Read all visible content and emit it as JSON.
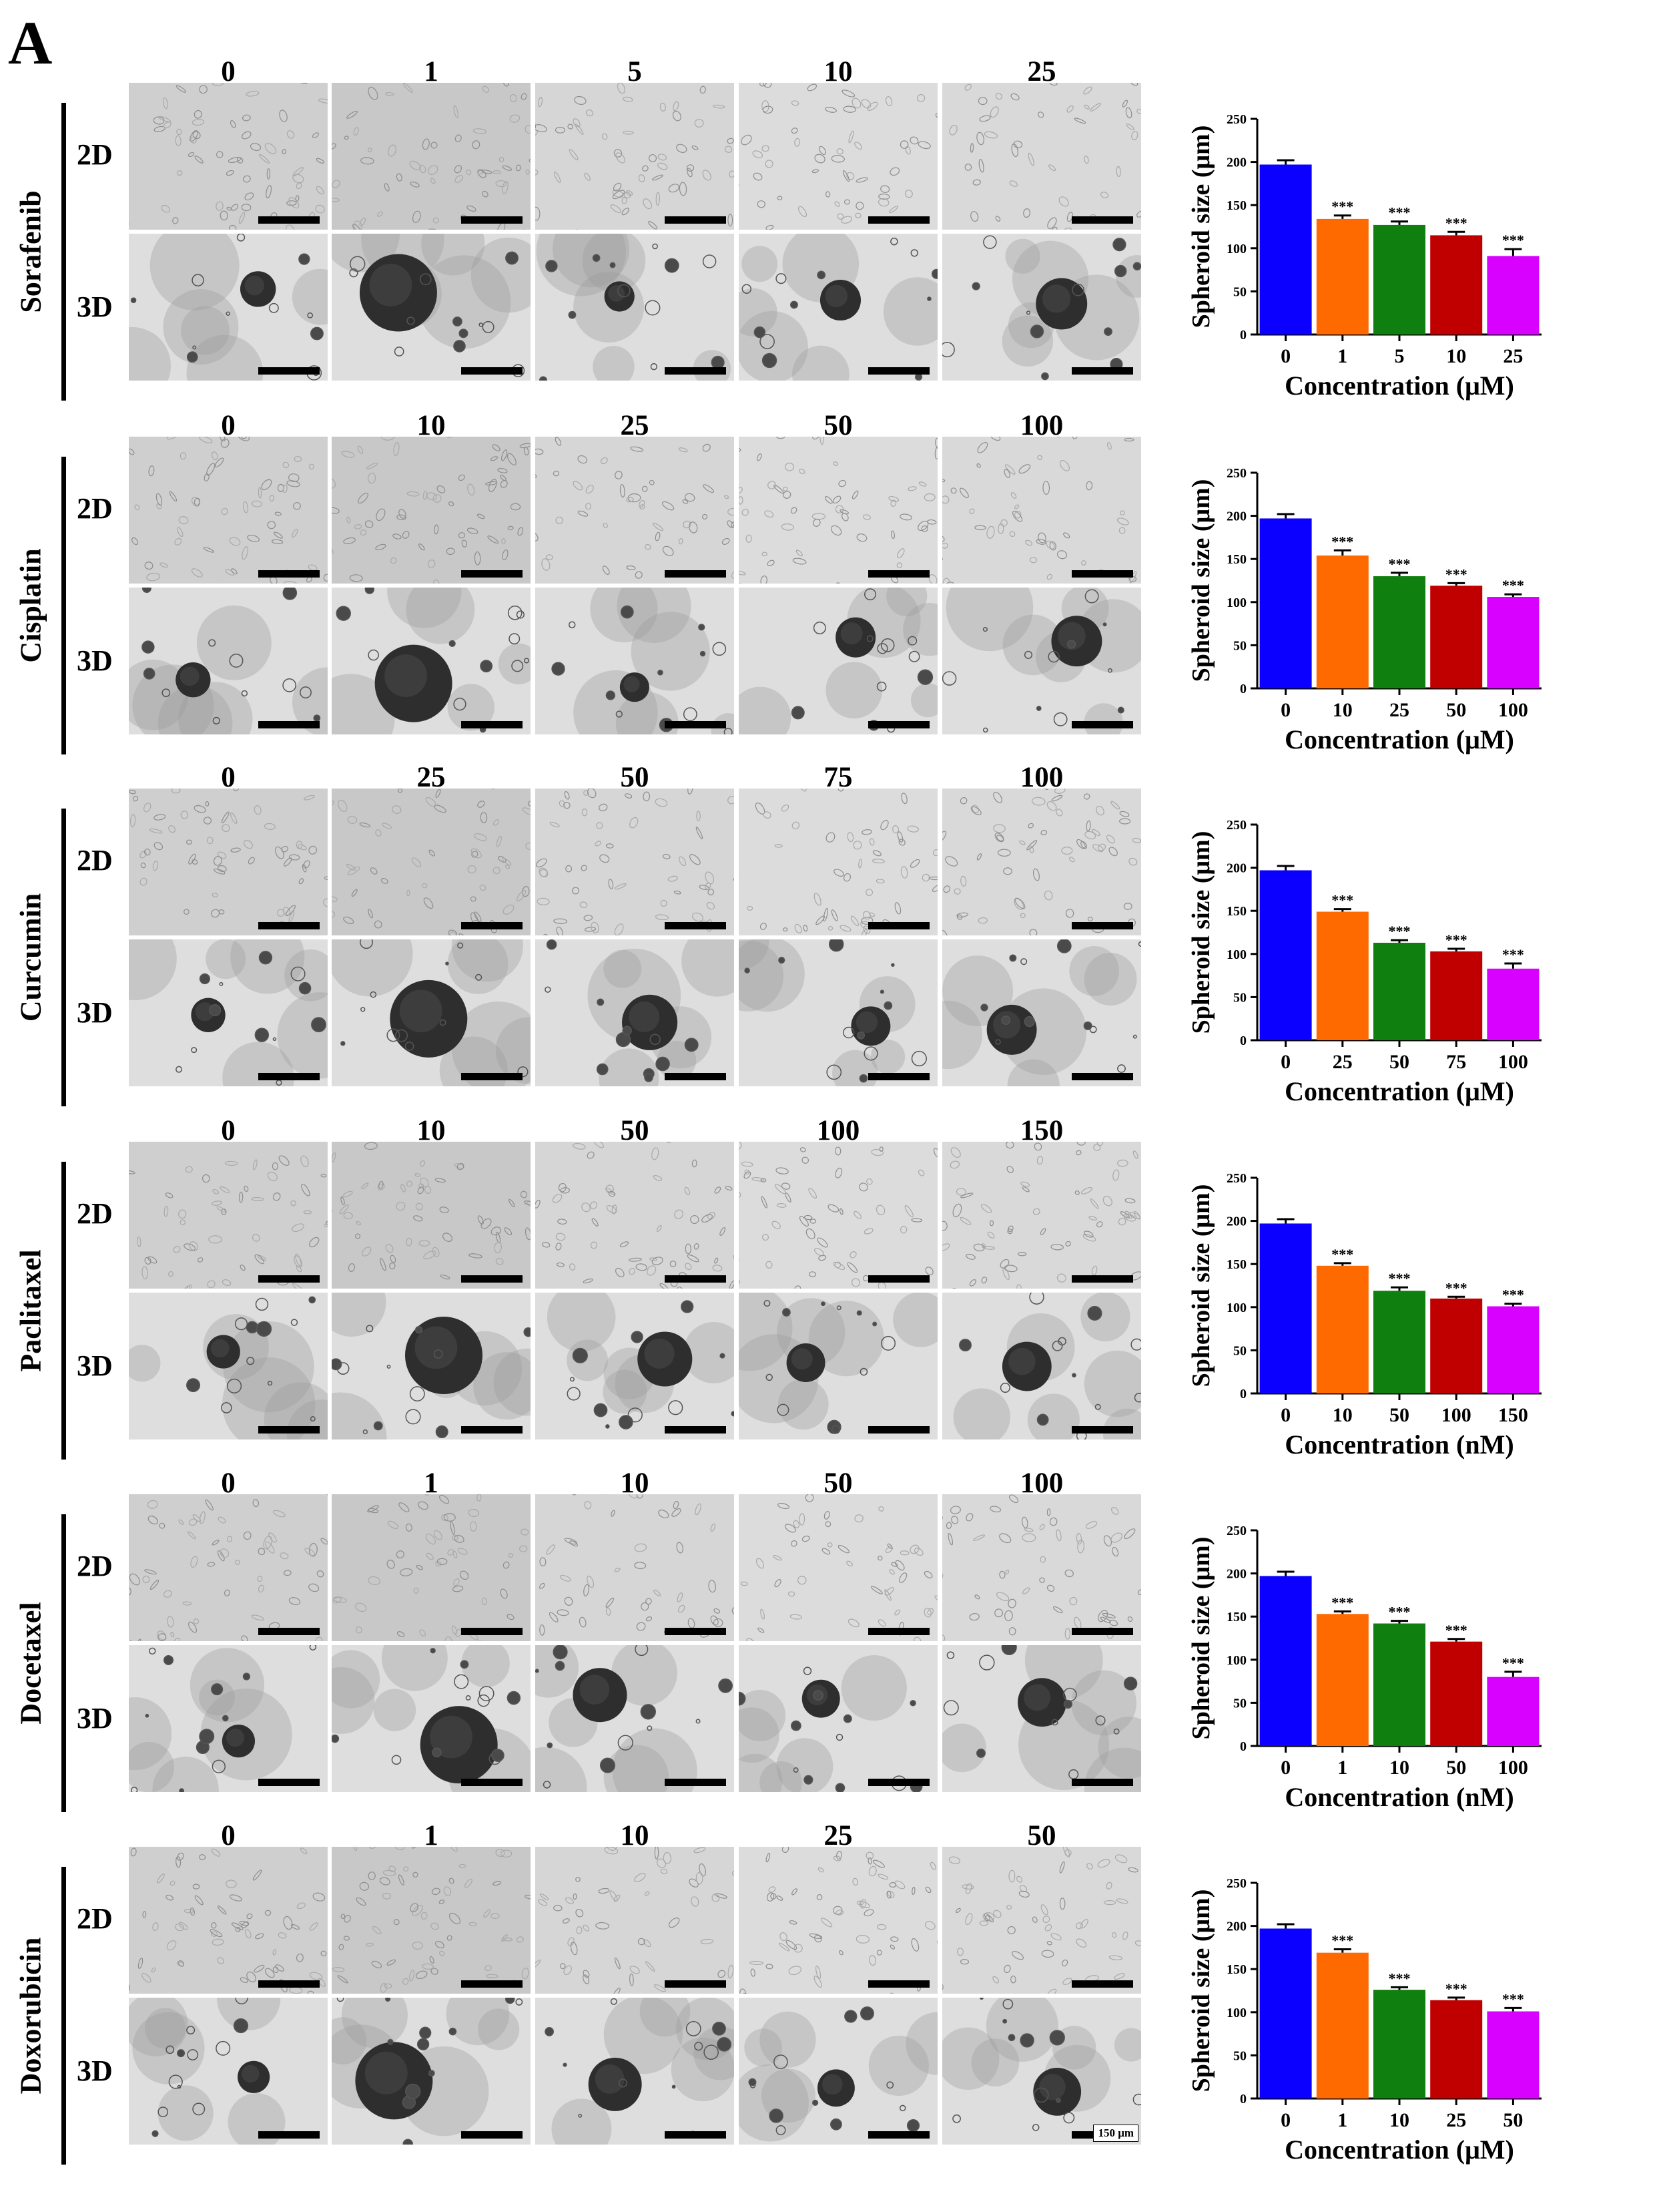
{
  "panel_label": "A",
  "dimension_labels": {
    "two_d": "2D",
    "three_d": "3D"
  },
  "scale_label": "150 μm",
  "colors": {
    "bar_colors": [
      "#0b00ff",
      "#ff6a00",
      "#0f7f0f",
      "#c00000",
      "#d800ff"
    ]
  },
  "drugs": [
    {
      "name": "Sorafenib",
      "concentrations": [
        "0",
        "1",
        "5",
        "10",
        "25"
      ]
    },
    {
      "name": "Cisplatin",
      "concentrations": [
        "0",
        "10",
        "25",
        "50",
        "100"
      ]
    },
    {
      "name": "Curcumin",
      "concentrations": [
        "0",
        "25",
        "50",
        "75",
        "100"
      ]
    },
    {
      "name": "Paclitaxel",
      "concentrations": [
        "0",
        "10",
        "50",
        "100",
        "150"
      ]
    },
    {
      "name": "Docetaxel",
      "concentrations": [
        "0",
        "1",
        "10",
        "50",
        "100"
      ]
    },
    {
      "name": "Doxorubicin",
      "concentrations": [
        "0",
        "1",
        "10",
        "25",
        "50"
      ]
    }
  ],
  "chart_data": [
    {
      "type": "bar",
      "title": "",
      "xlabel": "Concentration (μM)",
      "ylabel": "Spheroid size (μm)",
      "categories": [
        "0",
        "1",
        "5",
        "10",
        "25"
      ],
      "values": [
        197,
        134,
        127,
        115,
        91
      ],
      "errors": [
        5,
        4,
        4,
        4,
        8
      ],
      "significance": [
        "",
        "***",
        "***",
        "***",
        "***"
      ],
      "ylim": [
        0,
        250
      ],
      "yticks": [
        0,
        50,
        100,
        150,
        200,
        250
      ]
    },
    {
      "type": "bar",
      "title": "",
      "xlabel": "Concentration (μM)",
      "ylabel": "Spheroid size (μm)",
      "categories": [
        "0",
        "10",
        "25",
        "50",
        "100"
      ],
      "values": [
        197,
        154,
        130,
        119,
        106
      ],
      "errors": [
        5,
        6,
        4,
        3,
        3
      ],
      "significance": [
        "",
        "***",
        "***",
        "***",
        "***"
      ],
      "ylim": [
        0,
        250
      ],
      "yticks": [
        0,
        50,
        100,
        150,
        200,
        250
      ]
    },
    {
      "type": "bar",
      "title": "",
      "xlabel": "Concentration (μM)",
      "ylabel": "Spheroid size (μm)",
      "categories": [
        "0",
        "25",
        "50",
        "75",
        "100"
      ],
      "values": [
        197,
        149,
        113,
        103,
        83
      ],
      "errors": [
        5,
        3,
        3,
        3,
        6
      ],
      "significance": [
        "",
        "***",
        "***",
        "***",
        "***"
      ],
      "ylim": [
        0,
        250
      ],
      "yticks": [
        0,
        50,
        100,
        150,
        200,
        250
      ]
    },
    {
      "type": "bar",
      "title": "",
      "xlabel": "Concentration (nM)",
      "ylabel": "Spheroid size (μm)",
      "categories": [
        "0",
        "10",
        "50",
        "100",
        "150"
      ],
      "values": [
        197,
        148,
        119,
        110,
        101
      ],
      "errors": [
        5,
        3,
        4,
        2,
        3
      ],
      "significance": [
        "",
        "***",
        "***",
        "***",
        "***"
      ],
      "ylim": [
        0,
        250
      ],
      "yticks": [
        0,
        50,
        100,
        150,
        200,
        250
      ]
    },
    {
      "type": "bar",
      "title": "",
      "xlabel": "Concentration (nM)",
      "ylabel": "Spheroid size (μm)",
      "categories": [
        "0",
        "1",
        "10",
        "50",
        "100"
      ],
      "values": [
        197,
        153,
        142,
        121,
        80
      ],
      "errors": [
        5,
        3,
        3,
        3,
        6
      ],
      "significance": [
        "",
        "***",
        "***",
        "***",
        "***"
      ],
      "ylim": [
        0,
        250
      ],
      "yticks": [
        0,
        50,
        100,
        150,
        200,
        250
      ]
    },
    {
      "type": "bar",
      "title": "",
      "xlabel": "Concentration (μM)",
      "ylabel": "Spheroid size (μm)",
      "categories": [
        "0",
        "1",
        "10",
        "25",
        "50"
      ],
      "values": [
        197,
        169,
        126,
        114,
        101
      ],
      "errors": [
        5,
        4,
        3,
        3,
        4
      ],
      "significance": [
        "",
        "***",
        "***",
        "***",
        "***"
      ],
      "ylim": [
        0,
        250
      ],
      "yticks": [
        0,
        50,
        100,
        150,
        200,
        250
      ]
    }
  ]
}
